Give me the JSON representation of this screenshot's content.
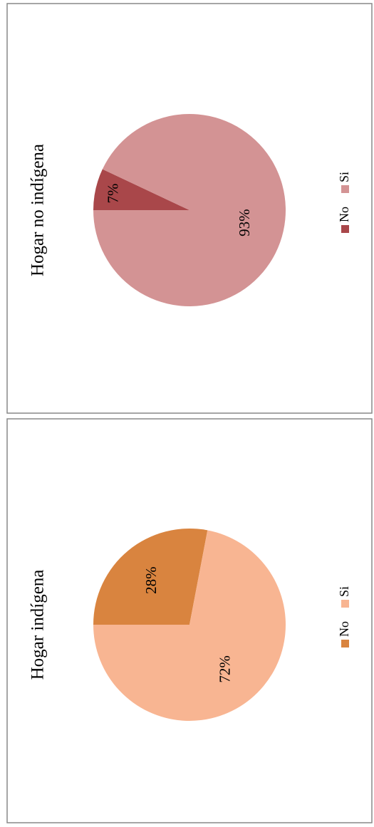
{
  "chart_data": [
    {
      "type": "pie",
      "title": "Hogar no indígena",
      "categories": [
        "No",
        "Si"
      ],
      "values": [
        7,
        93
      ],
      "value_labels": [
        "7%",
        "93%"
      ],
      "colors": [
        "#a9474a",
        "#d39394"
      ]
    },
    {
      "type": "pie",
      "title": "Hogar indígena",
      "categories": [
        "No",
        "Si"
      ],
      "values": [
        28,
        72
      ],
      "value_labels": [
        "28%",
        "72%"
      ],
      "colors": [
        "#d9843f",
        "#f8b592"
      ]
    }
  ]
}
